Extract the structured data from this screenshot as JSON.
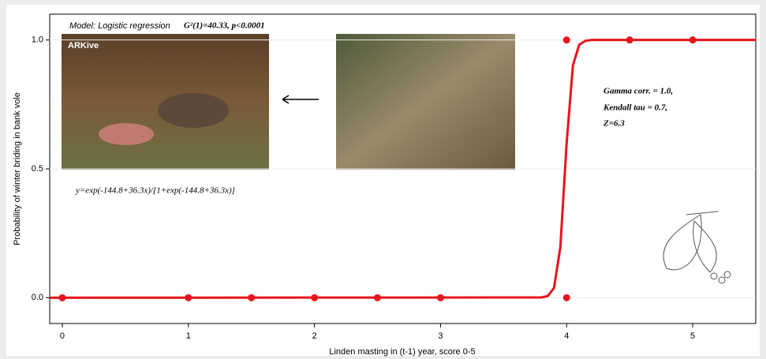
{
  "chart_data": {
    "type": "scatter",
    "title": "Model: Logistic regression",
    "subtitle": "G²(1)=40.33, p<0.0001",
    "x_label": "Linden masting in (t-1) year, score 0-5",
    "y_label": "Probability of winter briding in bank vole",
    "equation": "y=exp(-144.8+36.3x)/[1+exp(-144.8+36.3x)]",
    "annotations": [
      "Gamma corr. = 1.0,",
      "Kendall tau = 0.7,",
      "Z=6.3"
    ],
    "photo_label": "ARKive",
    "xlim": [
      -0.1,
      5.5
    ],
    "ylim": [
      -0.1,
      1.1
    ],
    "xticks": [
      0,
      1,
      2,
      3,
      4,
      5
    ],
    "yticks": [
      {
        "value": 0,
        "label": "0.0"
      },
      {
        "value": 0.5,
        "label": "0.5"
      },
      {
        "value": 1,
        "label": "1.0"
      }
    ],
    "grid": true,
    "color": "#e8141c",
    "x": [
      0,
      1,
      1.5,
      2,
      2.5,
      3,
      4,
      4,
      4.5,
      5
    ],
    "values": [
      0,
      0,
      0,
      0,
      0,
      0,
      0,
      1,
      1,
      1
    ],
    "fit": {
      "type": "line",
      "color": "#e8141c",
      "x": [
        -0.1,
        3.8,
        3.85,
        3.9,
        3.95,
        4.0,
        4.05,
        4.1,
        4.15,
        4.2,
        5.5
      ],
      "values": [
        0,
        0.001,
        0.0064,
        0.038,
        0.195,
        0.599,
        0.902,
        0.982,
        0.997,
        1,
        1
      ]
    }
  }
}
